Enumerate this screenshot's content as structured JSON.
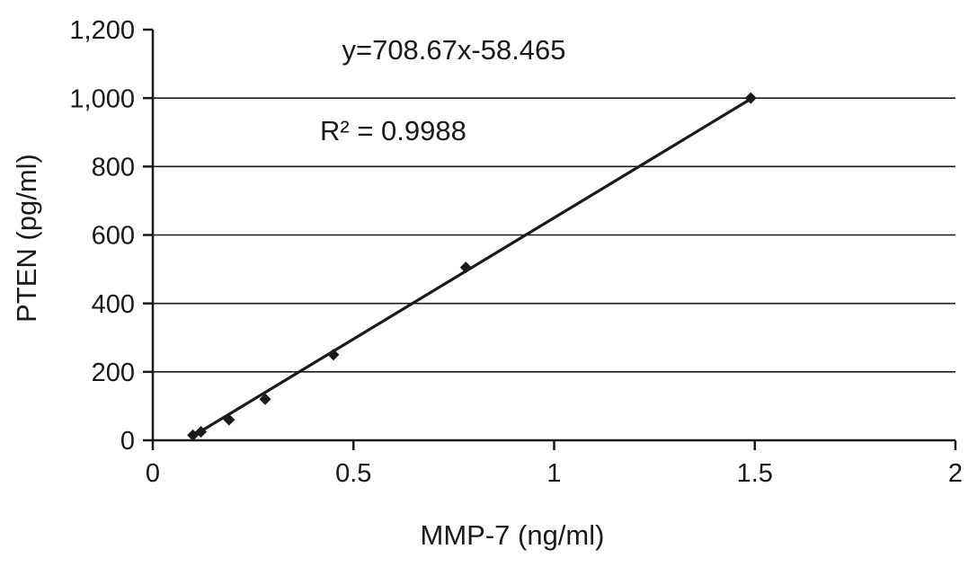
{
  "figure": {
    "background": "#ffffff"
  },
  "chart_data": {
    "type": "scatter",
    "title": "",
    "xlabel": "MMP-7 (ng/ml)",
    "ylabel": "PTEN (pg/ml)",
    "equation": "y=708.67x-58.465",
    "r_squared_label": "R² = 0.9988",
    "xlim": [
      0,
      2
    ],
    "ylim": [
      0,
      1200
    ],
    "x_ticks": [
      0,
      0.5,
      1,
      1.5,
      2
    ],
    "y_ticks": [
      0,
      200,
      400,
      600,
      800,
      1000,
      1200
    ],
    "grid": "horizontal",
    "legend": "none",
    "line_color": "#1a1a1a",
    "marker": "diamond",
    "points": [
      {
        "x": 0.1,
        "y": 15
      },
      {
        "x": 0.12,
        "y": 25
      },
      {
        "x": 0.19,
        "y": 60
      },
      {
        "x": 0.28,
        "y": 120
      },
      {
        "x": 0.45,
        "y": 250
      },
      {
        "x": 0.78,
        "y": 505
      },
      {
        "x": 1.49,
        "y": 1000
      }
    ],
    "trendline": {
      "slope": 708.67,
      "intercept": -58.465,
      "x_start": 0.1,
      "x_end": 1.49
    }
  }
}
